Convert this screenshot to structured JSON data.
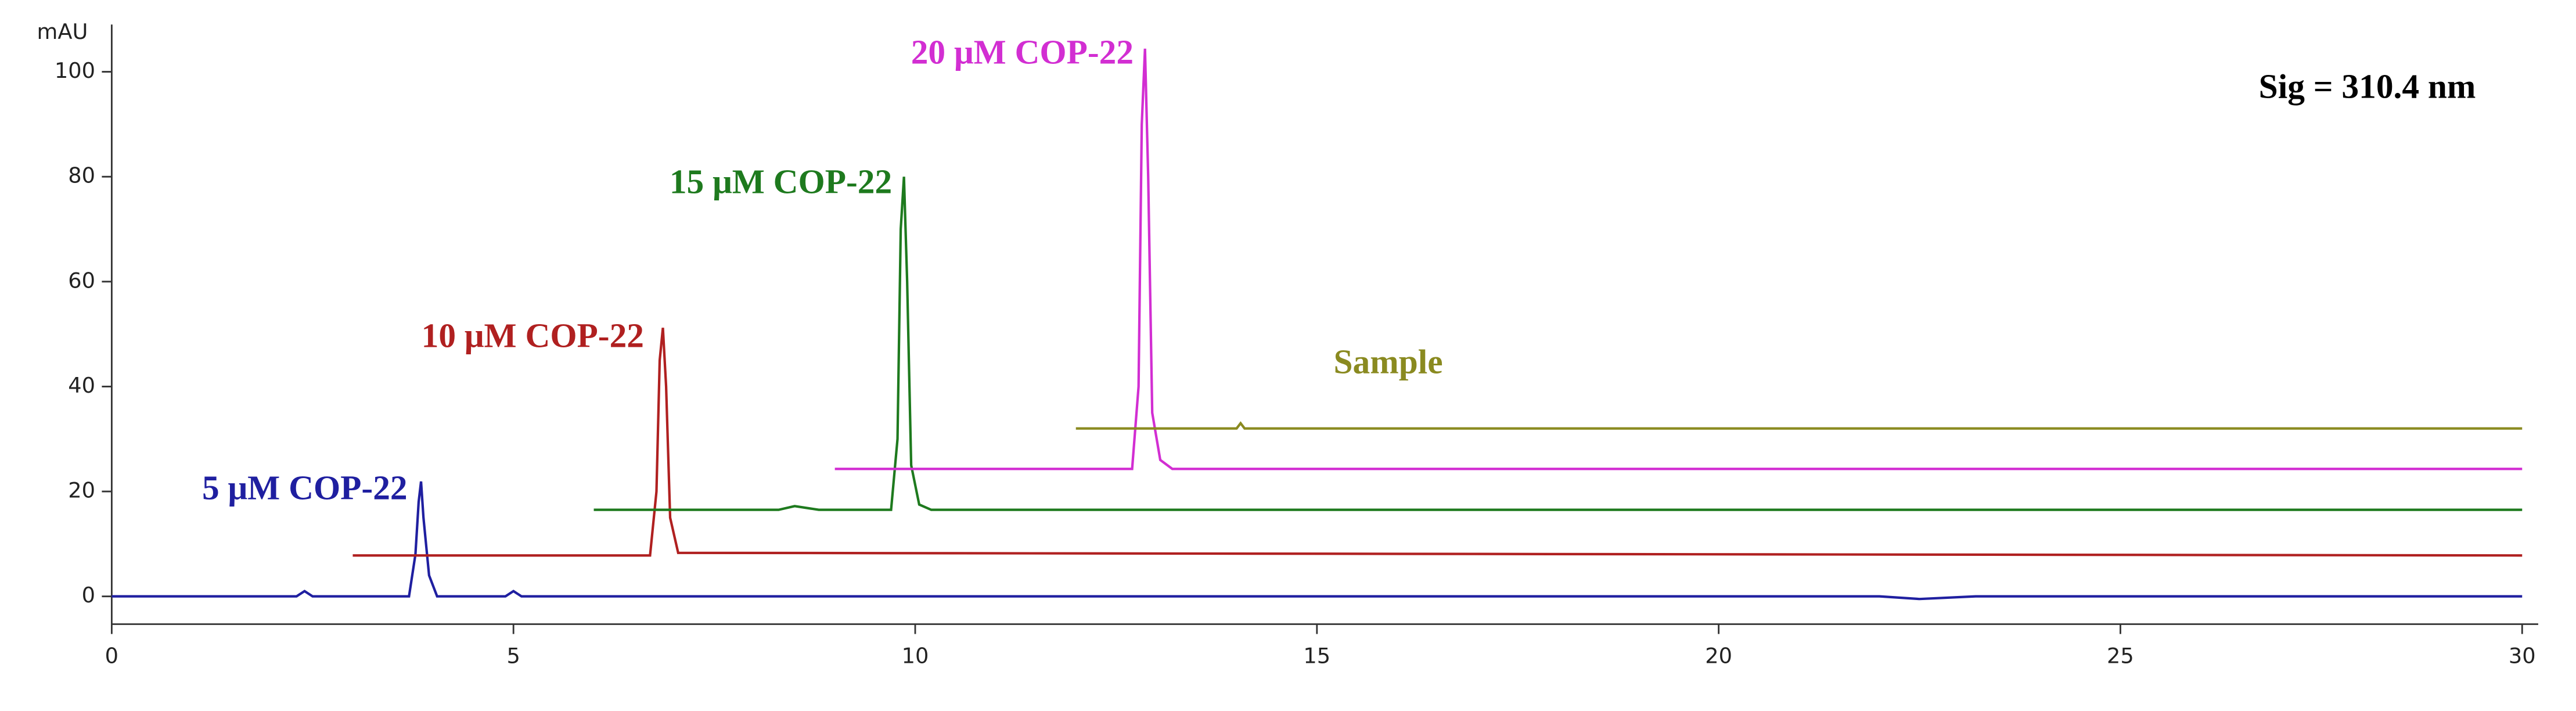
{
  "chart_data": {
    "type": "line",
    "y_label": "mAU",
    "annotations": [
      "Sig = 310.4 nm"
    ],
    "xlim": [
      0,
      30.2
    ],
    "ylim": [
      -5.3,
      109
    ],
    "xticks": [
      0,
      5,
      10,
      15,
      20,
      25,
      30
    ],
    "yticks": [
      0,
      20,
      40,
      60,
      80,
      100
    ],
    "grid": false,
    "series": [
      {
        "name": "5 μM COP-22",
        "color": "#1f1fa0",
        "x": [
          0,
          2.3,
          2.4,
          2.5,
          3.7,
          3.78,
          3.82,
          3.85,
          3.88,
          3.95,
          4.05,
          4.9,
          5.0,
          5.1,
          22,
          22.5,
          23.2,
          30
        ],
        "values": [
          0,
          0,
          1,
          0,
          0,
          8,
          18,
          21.9,
          15,
          4,
          0,
          0,
          1,
          0,
          0,
          -0.5,
          0,
          0
        ]
      },
      {
        "name": "10 μM COP-22",
        "color": "#b02020",
        "x": [
          3,
          6.7,
          6.78,
          6.82,
          6.86,
          6.9,
          6.95,
          7.05,
          30
        ],
        "values": [
          7.8,
          7.8,
          20,
          45,
          51.2,
          40,
          15,
          8.3,
          7.8
        ]
      },
      {
        "name": "15 μM COP-22",
        "color": "#1e7a1e",
        "x": [
          6,
          8.3,
          8.5,
          8.8,
          9.7,
          9.78,
          9.82,
          9.86,
          9.9,
          9.95,
          10.05,
          10.2,
          30
        ],
        "values": [
          16.5,
          16.5,
          17.2,
          16.5,
          16.5,
          30,
          70,
          80,
          60,
          25,
          17.5,
          16.5,
          16.5
        ]
      },
      {
        "name": "20 μM COP-22",
        "color": "#d22ed2",
        "x": [
          9,
          12.7,
          12.78,
          12.82,
          12.86,
          12.9,
          12.95,
          13.05,
          13.2,
          30
        ],
        "values": [
          24.3,
          24.3,
          40,
          90,
          104.4,
          80,
          35,
          26,
          24.3,
          24.3
        ]
      },
      {
        "name": "Sample",
        "color": "#8a8a20",
        "x": [
          12,
          14,
          14.05,
          14.1,
          30
        ],
        "values": [
          32,
          32,
          33,
          32,
          32
        ]
      }
    ]
  }
}
